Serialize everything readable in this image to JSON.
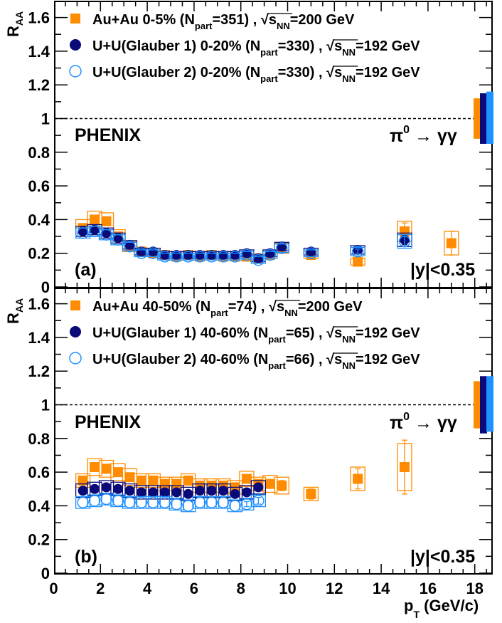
{
  "chart_data": [
    {
      "type": "scatter",
      "panel_label": "(a)",
      "experiment": "PHENIX",
      "channel": {
        "particle": "π",
        "superscript": "0",
        "decay": "→ γγ"
      },
      "rapidity": "|y|<0.35",
      "ylabel": {
        "main": "R",
        "sub": "AA"
      },
      "xlabel": "",
      "xlim": [
        0,
        19
      ],
      "ylim": [
        0,
        1.7
      ],
      "yticks": [
        "0",
        "0.2",
        "0.4",
        "0.6",
        "0.8",
        "1",
        "1.2",
        "1.4",
        "1.6"
      ],
      "xticks": [],
      "reference_line": 1,
      "legend": [
        {
          "pre": "Au+Au   0-5% (N",
          "sub": "part",
          "mid": "=351) , ",
          "root": "s",
          "rootsub": "NN",
          "post": "=200 GeV",
          "marker": "square-filled",
          "color": "#ff8c00"
        },
        {
          "pre": "U+U(Glauber 1)   0-20% (N",
          "sub": "part",
          "mid": "=330) , ",
          "root": "s",
          "rootsub": "NN",
          "post": "=192 GeV",
          "marker": "circle-filled",
          "color": "#0a0a78"
        },
        {
          "pre": "U+U(Glauber 2)   0-20% (N",
          "sub": "part",
          "mid": "=330) , ",
          "root": "s",
          "rootsub": "NN",
          "post": "=192 GeV",
          "marker": "circle-open",
          "color": "#1e90ff"
        }
      ],
      "norm_bands": [
        {
          "color": "#ff8c00",
          "range": [
            0.88,
            1.12
          ]
        },
        {
          "color": "#0a0a78",
          "range": [
            0.85,
            1.15
          ]
        },
        {
          "color": "#1e90ff",
          "range": [
            0.85,
            1.16
          ]
        }
      ],
      "series": [
        {
          "name": "Au+Au 0-5%",
          "marker": "square-filled",
          "color": "#ff8c00",
          "x": [
            1.25,
            1.75,
            2.25,
            2.75,
            3.25,
            3.75,
            4.25,
            4.75,
            5.25,
            5.75,
            6.25,
            6.75,
            7.25,
            7.75,
            8.25,
            8.75,
            9.25,
            9.75,
            11,
            13,
            15,
            17
          ],
          "y": [
            0.35,
            0.4,
            0.39,
            0.3,
            0.24,
            0.21,
            0.2,
            0.19,
            0.18,
            0.19,
            0.18,
            0.19,
            0.18,
            0.18,
            0.18,
            0.17,
            0.19,
            0.23,
            0.19,
            0.15,
            0.33,
            0.26
          ],
          "syst": [
            0.05,
            0.05,
            0.05,
            0.04,
            0.03,
            0.02,
            0.02,
            0.02,
            0.02,
            0.02,
            0.02,
            0.02,
            0.02,
            0.02,
            0.02,
            0.02,
            0.02,
            0.03,
            0.02,
            0.02,
            0.06,
            0.07
          ],
          "stat": [
            0.01,
            0.01,
            0.01,
            0.01,
            0.01,
            0.01,
            0.01,
            0.01,
            0.01,
            0.01,
            0.01,
            0.01,
            0.01,
            0.01,
            0.01,
            0.01,
            0.01,
            0.01,
            0.015,
            0.02,
            0.05,
            0.07
          ]
        },
        {
          "name": "U+U Glauber 1 0-20%",
          "marker": "circle-filled",
          "color": "#0a0a78",
          "x": [
            1.25,
            1.75,
            2.25,
            2.75,
            3.25,
            3.75,
            4.25,
            4.75,
            5.25,
            5.75,
            6.25,
            6.75,
            7.25,
            7.75,
            8.25,
            8.75,
            9.25,
            9.75,
            11,
            13,
            15
          ],
          "y": [
            0.33,
            0.34,
            0.32,
            0.29,
            0.25,
            0.21,
            0.21,
            0.19,
            0.19,
            0.19,
            0.19,
            0.19,
            0.19,
            0.19,
            0.2,
            0.17,
            0.2,
            0.24,
            0.21,
            0.22,
            0.28
          ],
          "syst": [
            0.03,
            0.03,
            0.03,
            0.03,
            0.025,
            0.02,
            0.02,
            0.02,
            0.02,
            0.02,
            0.02,
            0.02,
            0.02,
            0.02,
            0.02,
            0.02,
            0.02,
            0.025,
            0.02,
            0.025,
            0.04
          ],
          "stat": [
            0.01,
            0.01,
            0.01,
            0.01,
            0.01,
            0.01,
            0.01,
            0.01,
            0.01,
            0.01,
            0.01,
            0.01,
            0.01,
            0.01,
            0.01,
            0.01,
            0.01,
            0.01,
            0.01,
            0.015,
            0.03
          ]
        },
        {
          "name": "U+U Glauber 2 0-20%",
          "marker": "circle-open",
          "color": "#1e90ff",
          "x": [
            1.25,
            1.75,
            2.25,
            2.75,
            3.25,
            3.75,
            4.25,
            4.75,
            5.25,
            5.75,
            6.25,
            6.75,
            7.25,
            7.75,
            8.25,
            8.75,
            9.25,
            9.75,
            11,
            13,
            15
          ],
          "y": [
            0.32,
            0.33,
            0.31,
            0.28,
            0.24,
            0.2,
            0.2,
            0.18,
            0.18,
            0.18,
            0.18,
            0.18,
            0.18,
            0.18,
            0.19,
            0.16,
            0.19,
            0.23,
            0.2,
            0.21,
            0.27
          ],
          "syst": [
            0.03,
            0.03,
            0.03,
            0.03,
            0.025,
            0.02,
            0.02,
            0.02,
            0.02,
            0.02,
            0.02,
            0.02,
            0.02,
            0.02,
            0.02,
            0.02,
            0.02,
            0.025,
            0.02,
            0.025,
            0.04
          ],
          "stat": [
            0.01,
            0.01,
            0.01,
            0.01,
            0.01,
            0.01,
            0.01,
            0.01,
            0.01,
            0.01,
            0.01,
            0.01,
            0.01,
            0.01,
            0.01,
            0.01,
            0.01,
            0.01,
            0.01,
            0.015,
            0.03
          ]
        }
      ]
    },
    {
      "type": "scatter",
      "panel_label": "(b)",
      "experiment": "PHENIX",
      "channel": {
        "particle": "π",
        "superscript": "0",
        "decay": "→ γγ"
      },
      "rapidity": "|y|<0.35",
      "ylabel": {
        "main": "R",
        "sub": "AA"
      },
      "xlabel": {
        "main": "p",
        "sub": "T",
        "post": " (GeV/c)"
      },
      "xlim": [
        0,
        19
      ],
      "ylim": [
        0,
        1.7
      ],
      "yticks": [
        "0",
        "0.2",
        "0.4",
        "0.6",
        "0.8",
        "1",
        "1.2",
        "1.4",
        "1.6"
      ],
      "xticks": [
        "0",
        "2",
        "4",
        "6",
        "8",
        "10",
        "12",
        "14",
        "16",
        "18"
      ],
      "reference_line": 1,
      "legend": [
        {
          "pre": "Au+Au 40-50% (N",
          "sub": "part",
          "mid": "=74) , ",
          "root": "s",
          "rootsub": "NN",
          "post": "=200 GeV",
          "marker": "square-filled",
          "color": "#ff8c00"
        },
        {
          "pre": "U+U(Glauber 1) 40-60% (N",
          "sub": "part",
          "mid": "=65) , ",
          "root": "s",
          "rootsub": "NN",
          "post": "=192 GeV",
          "marker": "circle-filled",
          "color": "#0a0a78"
        },
        {
          "pre": "U+U(Glauber 2) 40-60% (N",
          "sub": "part",
          "mid": "=66) , ",
          "root": "s",
          "rootsub": "NN",
          "post": "=192 GeV",
          "marker": "circle-open",
          "color": "#1e90ff"
        }
      ],
      "norm_bands": [
        {
          "color": "#ff8c00",
          "range": [
            0.86,
            1.14
          ]
        },
        {
          "color": "#0a0a78",
          "range": [
            0.83,
            1.17
          ]
        },
        {
          "color": "#1e90ff",
          "range": [
            0.84,
            1.17
          ]
        }
      ],
      "series": [
        {
          "name": "Au+Au 40-50%",
          "marker": "square-filled",
          "color": "#ff8c00",
          "x": [
            1.25,
            1.75,
            2.25,
            2.75,
            3.25,
            3.75,
            4.25,
            4.75,
            5.25,
            5.75,
            6.25,
            6.75,
            7.25,
            7.75,
            8.25,
            8.75,
            9.25,
            9.75,
            11,
            13,
            15
          ],
          "y": [
            0.55,
            0.63,
            0.62,
            0.6,
            0.57,
            0.55,
            0.55,
            0.53,
            0.53,
            0.55,
            0.52,
            0.52,
            0.52,
            0.51,
            0.56,
            0.53,
            0.53,
            0.52,
            0.47,
            0.56,
            0.63
          ],
          "syst": [
            0.04,
            0.05,
            0.05,
            0.05,
            0.05,
            0.04,
            0.04,
            0.04,
            0.04,
            0.04,
            0.04,
            0.04,
            0.04,
            0.04,
            0.045,
            0.04,
            0.05,
            0.05,
            0.04,
            0.07,
            0.14
          ],
          "stat": [
            0.01,
            0.01,
            0.01,
            0.01,
            0.01,
            0.01,
            0.01,
            0.01,
            0.01,
            0.01,
            0.01,
            0.01,
            0.01,
            0.01,
            0.01,
            0.015,
            0.02,
            0.03,
            0.03,
            0.06,
            0.16
          ]
        },
        {
          "name": "U+U Glauber 1 40-60%",
          "marker": "circle-filled",
          "color": "#0a0a78",
          "x": [
            1.25,
            1.75,
            2.25,
            2.75,
            3.25,
            3.75,
            4.25,
            4.75,
            5.25,
            5.75,
            6.25,
            6.75,
            7.25,
            7.75,
            8.25,
            8.75
          ],
          "y": [
            0.49,
            0.5,
            0.51,
            0.5,
            0.49,
            0.48,
            0.48,
            0.48,
            0.48,
            0.47,
            0.49,
            0.49,
            0.49,
            0.47,
            0.48,
            0.51
          ],
          "syst": [
            0.04,
            0.04,
            0.04,
            0.04,
            0.04,
            0.04,
            0.04,
            0.04,
            0.04,
            0.04,
            0.04,
            0.04,
            0.04,
            0.04,
            0.04,
            0.04
          ],
          "stat": [
            0.01,
            0.01,
            0.01,
            0.01,
            0.01,
            0.01,
            0.01,
            0.01,
            0.01,
            0.01,
            0.01,
            0.01,
            0.01,
            0.01,
            0.015,
            0.02
          ]
        },
        {
          "name": "U+U Glauber 2 40-60%",
          "marker": "circle-open",
          "color": "#1e90ff",
          "x": [
            1.25,
            1.75,
            2.25,
            2.75,
            3.25,
            3.75,
            4.25,
            4.75,
            5.25,
            5.75,
            6.25,
            6.75,
            7.25,
            7.75,
            8.25,
            8.75
          ],
          "y": [
            0.42,
            0.43,
            0.44,
            0.43,
            0.42,
            0.42,
            0.42,
            0.42,
            0.41,
            0.4,
            0.42,
            0.42,
            0.42,
            0.4,
            0.41,
            0.43
          ],
          "syst": [
            0.035,
            0.035,
            0.035,
            0.035,
            0.035,
            0.035,
            0.035,
            0.035,
            0.035,
            0.035,
            0.035,
            0.035,
            0.035,
            0.035,
            0.035,
            0.035
          ],
          "stat": [
            0.01,
            0.01,
            0.01,
            0.01,
            0.01,
            0.01,
            0.01,
            0.01,
            0.01,
            0.01,
            0.01,
            0.01,
            0.01,
            0.01,
            0.015,
            0.02
          ]
        }
      ]
    }
  ]
}
